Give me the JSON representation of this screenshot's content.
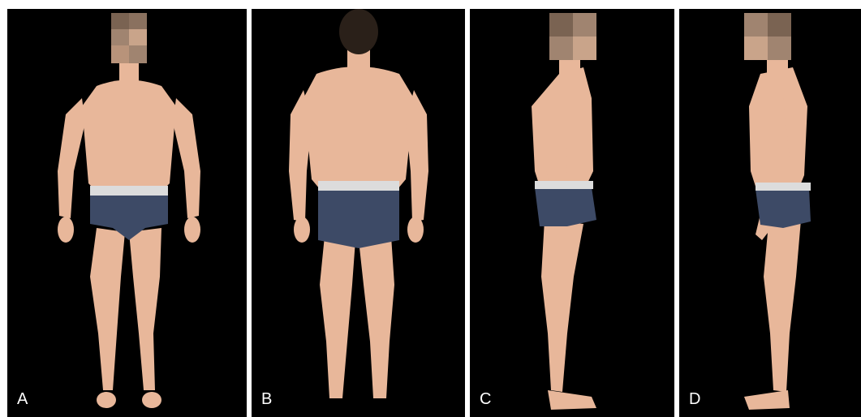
{
  "figure": {
    "panels": [
      {
        "label": "A",
        "view": "front"
      },
      {
        "label": "B",
        "view": "back"
      },
      {
        "label": "C",
        "view": "right-side"
      },
      {
        "label": "D",
        "view": "left-side"
      }
    ]
  },
  "colors": {
    "background": "#000000",
    "gutter": "#ffffff",
    "skin": "#e8b79a",
    "skin_shadow": "#c98f70",
    "underwear": "#3d4a66",
    "waistband": "#dcdcdc",
    "hair": "#2a2019",
    "label": "#ffffff"
  }
}
